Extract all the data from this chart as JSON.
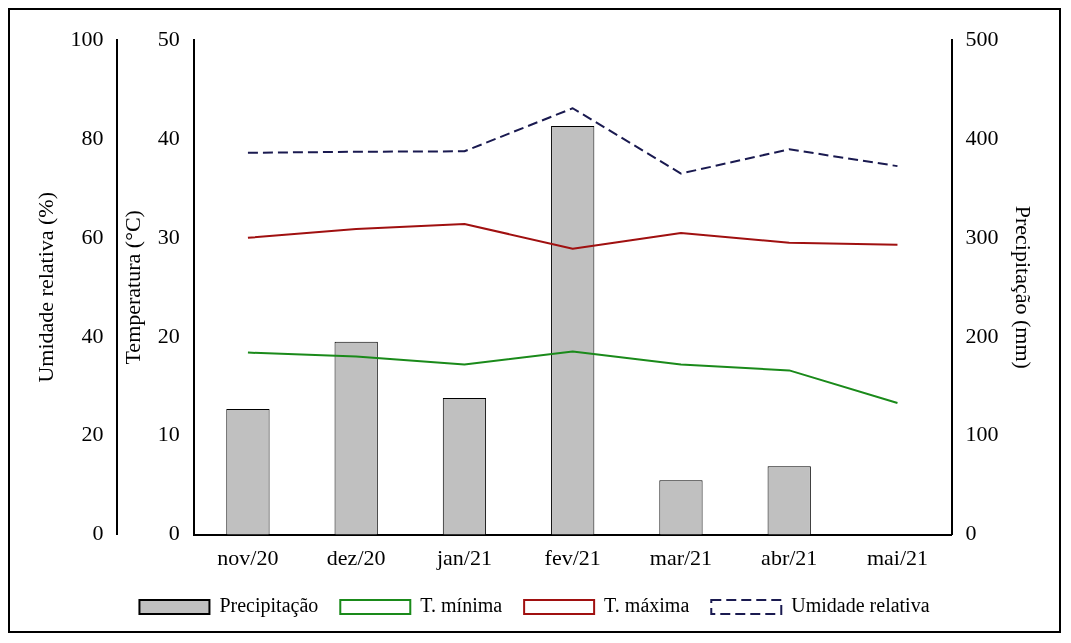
{
  "chart_data": {
    "type": "line",
    "categories": [
      "nov/20",
      "dez/20",
      "jan/21",
      "fev/21",
      "mar/21",
      "abr/21",
      "mai/21"
    ],
    "ylabel": "Temperatura (°C)",
    "y2label": "Precipitação (mm)",
    "y3label": "Umidade relativa (%)",
    "ylim": [
      0,
      50
    ],
    "yticks": [
      0,
      10,
      20,
      30,
      40,
      50
    ],
    "y2lim": [
      0,
      500
    ],
    "y2ticks": [
      0,
      100,
      200,
      300,
      400,
      500
    ],
    "y3lim": [
      0,
      100
    ],
    "y3ticks": [
      0,
      20,
      40,
      60,
      80,
      100
    ],
    "grid": false,
    "legend": "bottom",
    "marker": "none",
    "series": [
      {
        "name": "Precipitação",
        "type": "bar",
        "axis": "y2",
        "color": "#c0c0c0",
        "values": [
          127,
          195,
          138,
          413,
          55,
          69,
          null
        ]
      },
      {
        "name": "T. mínima",
        "axis": "y",
        "color": "#1a8a1a",
        "line_style": "solid",
        "values": [
          18.4,
          18.0,
          17.2,
          18.5,
          17.2,
          16.6,
          13.3
        ]
      },
      {
        "name": "T. máxima",
        "axis": "y",
        "color": "#a01010",
        "line_style": "solid",
        "values": [
          30.0,
          30.9,
          31.4,
          28.9,
          30.5,
          29.5,
          29.3
        ]
      },
      {
        "name": "Umidade relativa",
        "axis": "y3",
        "color": "#1a1a50",
        "line_style": "dashed",
        "values": [
          77.2,
          77.4,
          77.5,
          86.2,
          73.0,
          77.9,
          74.5
        ]
      }
    ]
  }
}
